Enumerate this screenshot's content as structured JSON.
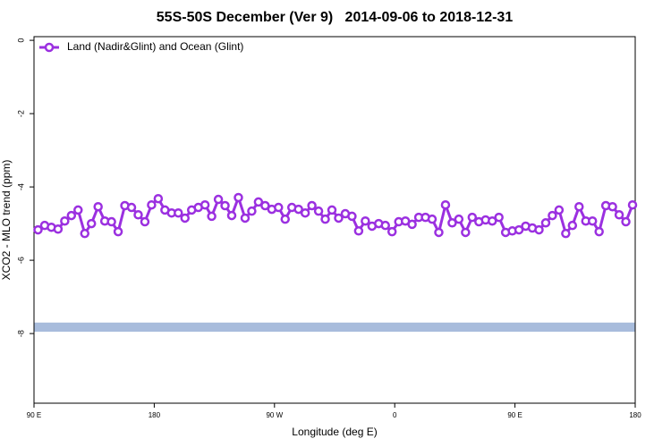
{
  "chart_data": {
    "type": "line",
    "title": "55S-50S December (Ver 9)   2014-09-06 to 2018-12-31",
    "x_label": "Longitude (deg E)",
    "y_label": "XCO2 - MLO trend (ppm)",
    "xlim": [
      90,
      540
    ],
    "xticks": [
      {
        "value": 90,
        "label": "90 E"
      },
      180,
      {
        "value": 270,
        "label": "90 W"
      },
      {
        "value": 360,
        "label": "0"
      },
      {
        "value": 450,
        "label": "90 E"
      },
      {
        "value": 540,
        "label": "180"
      }
    ],
    "ylim": [
      -9.9,
      0.1
    ],
    "yticks": [
      0,
      -2,
      -4,
      -6,
      -8
    ],
    "legend": "top-left",
    "band": {
      "from": -7.95,
      "to": -7.7,
      "color": "#a8bcdc"
    },
    "x": [
      93,
      98,
      103,
      108,
      113,
      118,
      123,
      128,
      133,
      138,
      143,
      148,
      153,
      158,
      163,
      168,
      173,
      178,
      183,
      188,
      193,
      198,
      203,
      208,
      213,
      218,
      223,
      228,
      233,
      238,
      243,
      248,
      253,
      258,
      263,
      268,
      273,
      278,
      283,
      288,
      293,
      298,
      303,
      308,
      313,
      318,
      323,
      328,
      333,
      338,
      343,
      348,
      353,
      358,
      363,
      368,
      373,
      378,
      383,
      388,
      393,
      398,
      403,
      408,
      413,
      418,
      423,
      428,
      433,
      438,
      443,
      448,
      453,
      458,
      463,
      468,
      473,
      478,
      483,
      488,
      493,
      498,
      503,
      508,
      513,
      518,
      523,
      528,
      533,
      538
    ],
    "series": [
      {
        "name": "Land (Nadir&Glint) and Ocean (Glint)",
        "color": "#9b30e0",
        "values": [
          -5.17,
          -5.05,
          -5.1,
          -5.15,
          -4.93,
          -4.78,
          -4.63,
          -5.27,
          -5.0,
          -4.54,
          -4.93,
          -4.95,
          -5.22,
          -4.51,
          -4.56,
          -4.76,
          -4.95,
          -4.49,
          -4.32,
          -4.63,
          -4.71,
          -4.71,
          -4.85,
          -4.63,
          -4.56,
          -4.49,
          -4.8,
          -4.34,
          -4.51,
          -4.78,
          -4.29,
          -4.85,
          -4.66,
          -4.41,
          -4.51,
          -4.61,
          -4.56,
          -4.88,
          -4.56,
          -4.61,
          -4.71,
          -4.51,
          -4.66,
          -4.88,
          -4.63,
          -4.85,
          -4.73,
          -4.8,
          -5.2,
          -4.93,
          -5.07,
          -5.0,
          -5.05,
          -5.22,
          -4.95,
          -4.93,
          -5.02,
          -4.83,
          -4.83,
          -4.88,
          -5.24,
          -4.49,
          -4.98,
          -4.88,
          -5.24,
          -4.83,
          -4.95,
          -4.9,
          -4.93,
          -4.83,
          -5.24,
          -5.2,
          -5.17,
          -5.07,
          -5.12,
          -5.17,
          -4.98,
          -4.78,
          -4.63,
          -5.27,
          -5.05,
          -4.54,
          -4.93,
          -4.93,
          -5.22,
          -4.51,
          -4.54,
          -4.76,
          -4.95,
          -4.49
        ]
      }
    ]
  }
}
